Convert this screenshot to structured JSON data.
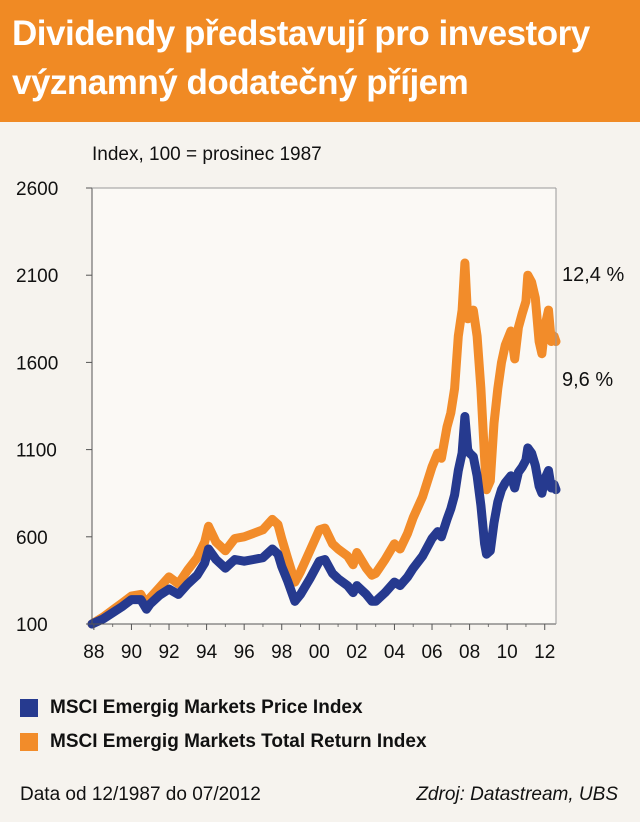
{
  "header": {
    "title_line1": "Dividendy představují pro investory",
    "title_line2": "významný dodatečný příjem"
  },
  "chart_data": {
    "type": "line",
    "subtitle": "Index, 100 = prosinec 1987",
    "yticks": [
      100,
      600,
      1100,
      1600,
      2100,
      2600
    ],
    "ylim": [
      100,
      2600
    ],
    "xticks": [
      1988,
      1990,
      1992,
      1994,
      1996,
      1998,
      2000,
      2002,
      2004,
      2006,
      2008,
      2010,
      2012
    ],
    "xtick_labels": [
      "88",
      "90",
      "92",
      "94",
      "96",
      "98",
      "00",
      "02",
      "04",
      "06",
      "08",
      "10",
      "12"
    ],
    "xlim": [
      1987.9,
      2012.6
    ],
    "series": [
      {
        "name": "MSCI Emergig Markets Total Return Index",
        "color": "#f28c2a",
        "end_label": "12,4 %",
        "points": [
          [
            1987.9,
            100
          ],
          [
            1988.5,
            140
          ],
          [
            1989,
            180
          ],
          [
            1989.5,
            220
          ],
          [
            1990,
            260
          ],
          [
            1990.5,
            270
          ],
          [
            1990.8,
            210
          ],
          [
            1991,
            250
          ],
          [
            1991.5,
            310
          ],
          [
            1992,
            370
          ],
          [
            1992.5,
            330
          ],
          [
            1993,
            410
          ],
          [
            1993.5,
            480
          ],
          [
            1993.9,
            570
          ],
          [
            1994.1,
            660
          ],
          [
            1994.5,
            570
          ],
          [
            1995,
            520
          ],
          [
            1995.5,
            590
          ],
          [
            1996,
            600
          ],
          [
            1996.5,
            620
          ],
          [
            1997,
            640
          ],
          [
            1997.5,
            700
          ],
          [
            1997.8,
            670
          ],
          [
            1998,
            590
          ],
          [
            1998.3,
            480
          ],
          [
            1998.7,
            340
          ],
          [
            1999,
            400
          ],
          [
            1999.5,
            520
          ],
          [
            2000,
            640
          ],
          [
            2000.3,
            650
          ],
          [
            2000.7,
            560
          ],
          [
            2001,
            530
          ],
          [
            2001.5,
            490
          ],
          [
            2001.8,
            440
          ],
          [
            2002,
            510
          ],
          [
            2002.5,
            420
          ],
          [
            2002.8,
            380
          ],
          [
            2003,
            390
          ],
          [
            2003.5,
            470
          ],
          [
            2004,
            560
          ],
          [
            2004.3,
            530
          ],
          [
            2004.7,
            620
          ],
          [
            2005,
            710
          ],
          [
            2005.5,
            830
          ],
          [
            2006,
            1000
          ],
          [
            2006.3,
            1080
          ],
          [
            2006.5,
            1050
          ],
          [
            2006.8,
            1230
          ],
          [
            2007,
            1310
          ],
          [
            2007.2,
            1450
          ],
          [
            2007.4,
            1750
          ],
          [
            2007.6,
            1900
          ],
          [
            2007.75,
            2170
          ],
          [
            2007.9,
            1850
          ],
          [
            2008,
            1870
          ],
          [
            2008.2,
            1900
          ],
          [
            2008.4,
            1750
          ],
          [
            2008.6,
            1450
          ],
          [
            2008.8,
            1050
          ],
          [
            2008.9,
            870
          ],
          [
            2009.1,
            920
          ],
          [
            2009.3,
            1250
          ],
          [
            2009.5,
            1450
          ],
          [
            2009.7,
            1600
          ],
          [
            2009.9,
            1700
          ],
          [
            2010.2,
            1780
          ],
          [
            2010.4,
            1620
          ],
          [
            2010.6,
            1800
          ],
          [
            2010.8,
            1880
          ],
          [
            2011,
            1950
          ],
          [
            2011.1,
            2100
          ],
          [
            2011.3,
            2060
          ],
          [
            2011.5,
            1970
          ],
          [
            2011.7,
            1720
          ],
          [
            2011.85,
            1650
          ],
          [
            2012,
            1800
          ],
          [
            2012.2,
            1900
          ],
          [
            2012.35,
            1720
          ],
          [
            2012.5,
            1750
          ],
          [
            2012.6,
            1720
          ]
        ]
      },
      {
        "name": "MSCI Emergig Markets Price Index",
        "color": "#263a8f",
        "end_label": "9,6 %",
        "points": [
          [
            1987.9,
            100
          ],
          [
            1988.5,
            130
          ],
          [
            1989,
            165
          ],
          [
            1989.5,
            200
          ],
          [
            1990,
            240
          ],
          [
            1990.5,
            240
          ],
          [
            1990.8,
            185
          ],
          [
            1991,
            215
          ],
          [
            1991.5,
            265
          ],
          [
            1992,
            300
          ],
          [
            1992.5,
            270
          ],
          [
            1993,
            330
          ],
          [
            1993.5,
            380
          ],
          [
            1993.9,
            450
          ],
          [
            1994.1,
            530
          ],
          [
            1994.5,
            470
          ],
          [
            1995,
            420
          ],
          [
            1995.5,
            470
          ],
          [
            1996,
            460
          ],
          [
            1996.5,
            470
          ],
          [
            1997,
            480
          ],
          [
            1997.5,
            530
          ],
          [
            1997.8,
            500
          ],
          [
            1998,
            430
          ],
          [
            1998.3,
            350
          ],
          [
            1998.7,
            230
          ],
          [
            1999,
            270
          ],
          [
            1999.5,
            360
          ],
          [
            2000,
            460
          ],
          [
            2000.3,
            470
          ],
          [
            2000.7,
            390
          ],
          [
            2001,
            360
          ],
          [
            2001.5,
            320
          ],
          [
            2001.8,
            280
          ],
          [
            2002,
            320
          ],
          [
            2002.5,
            270
          ],
          [
            2002.8,
            230
          ],
          [
            2003,
            230
          ],
          [
            2003.5,
            280
          ],
          [
            2004,
            340
          ],
          [
            2004.3,
            320
          ],
          [
            2004.7,
            370
          ],
          [
            2005,
            420
          ],
          [
            2005.5,
            490
          ],
          [
            2006,
            590
          ],
          [
            2006.3,
            630
          ],
          [
            2006.5,
            600
          ],
          [
            2006.8,
            700
          ],
          [
            2007,
            760
          ],
          [
            2007.2,
            840
          ],
          [
            2007.4,
            980
          ],
          [
            2007.6,
            1080
          ],
          [
            2007.75,
            1290
          ],
          [
            2007.9,
            1100
          ],
          [
            2008,
            1080
          ],
          [
            2008.2,
            1060
          ],
          [
            2008.4,
            950
          ],
          [
            2008.6,
            780
          ],
          [
            2008.8,
            560
          ],
          [
            2008.9,
            500
          ],
          [
            2009.1,
            520
          ],
          [
            2009.3,
            680
          ],
          [
            2009.5,
            800
          ],
          [
            2009.7,
            870
          ],
          [
            2009.9,
            910
          ],
          [
            2010.2,
            950
          ],
          [
            2010.4,
            880
          ],
          [
            2010.6,
            970
          ],
          [
            2010.8,
            1000
          ],
          [
            2011,
            1040
          ],
          [
            2011.1,
            1110
          ],
          [
            2011.3,
            1080
          ],
          [
            2011.5,
            1010
          ],
          [
            2011.7,
            890
          ],
          [
            2011.85,
            850
          ],
          [
            2012,
            930
          ],
          [
            2012.2,
            980
          ],
          [
            2012.35,
            880
          ],
          [
            2012.5,
            900
          ],
          [
            2012.6,
            870
          ]
        ]
      }
    ]
  },
  "legend": [
    {
      "label": "MSCI Emergig Markets Price Index",
      "color": "#263a8f"
    },
    {
      "label": "MSCI Emergig Markets Total Return Index",
      "color": "#f28c2a"
    }
  ],
  "footer": {
    "source_range": "Data od 12/1987 do 07/2012",
    "source": "Zdroj: Datastream, UBS"
  }
}
